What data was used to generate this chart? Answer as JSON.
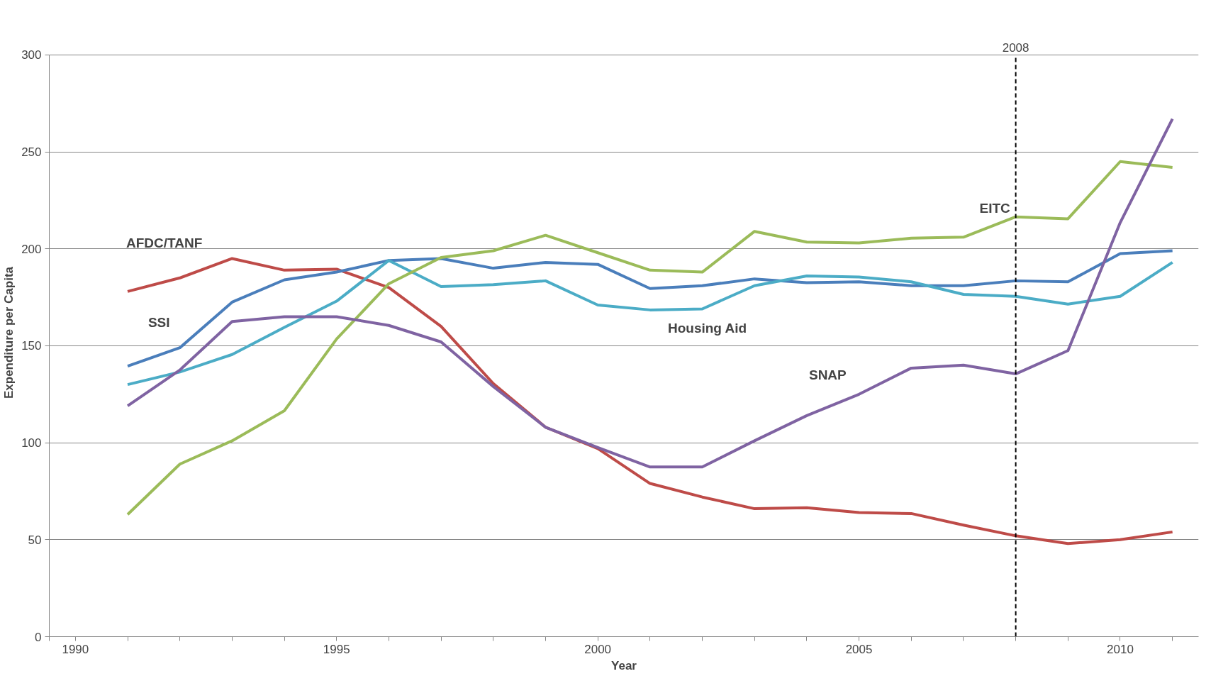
{
  "chart_data": {
    "type": "line",
    "xlabel": "Year",
    "ylabel": "Expenditure per Capita",
    "x": [
      1991,
      1992,
      1993,
      1994,
      1995,
      1996,
      1997,
      1998,
      1999,
      2000,
      2001,
      2002,
      2003,
      2004,
      2005,
      2006,
      2007,
      2008,
      2009,
      2010,
      2011
    ],
    "series": [
      {
        "name": "AFDC/TANF",
        "color": "#be4b48",
        "values": [
          178,
          185,
          195,
          189,
          189.5,
          180,
          160,
          130.5,
          108,
          97,
          79,
          72,
          66,
          66.5,
          64,
          63.5,
          57.5,
          52,
          48,
          50,
          54
        ]
      },
      {
        "name": "SSI",
        "color": "#4a7ebb",
        "values": [
          139.5,
          149,
          172.5,
          184,
          188,
          194,
          195,
          190,
          193,
          192,
          179.5,
          181,
          184.5,
          182.5,
          183,
          181,
          181,
          183.5,
          183,
          197.5,
          199
        ]
      },
      {
        "name": "Housing Aid",
        "color": "#4bacc6",
        "values": [
          130,
          136.5,
          145.5,
          159.5,
          173,
          194,
          180.5,
          181.5,
          183.5,
          171,
          168.5,
          169,
          181,
          186,
          185.5,
          183,
          176.5,
          175.5,
          171.5,
          175.5,
          193
        ]
      },
      {
        "name": "EITC",
        "color": "#9bbb59",
        "values": [
          63,
          89,
          101,
          116.5,
          153.5,
          182,
          195.5,
          199,
          207,
          198,
          189,
          188,
          209,
          203.5,
          203,
          205.5,
          206,
          216.5,
          215.5,
          245,
          242
        ]
      },
      {
        "name": "SNAP",
        "color": "#7f63a2",
        "values": [
          119,
          137.5,
          162.5,
          165,
          165,
          160.5,
          152,
          129,
          108,
          97.5,
          87.5,
          87.5,
          101,
          114,
          125,
          138.5,
          140,
          135.5,
          147.5,
          213.5,
          267
        ]
      }
    ],
    "xlim": [
      1989.5,
      2011.5
    ],
    "xticks": [
      {
        "value": 1989.5,
        "label": null
      },
      {
        "value": 1990,
        "label": "1990"
      },
      {
        "value": 1991,
        "label": null
      },
      {
        "value": 1992,
        "label": null
      },
      {
        "value": 1993,
        "label": null
      },
      {
        "value": 1994,
        "label": null
      },
      {
        "value": 1995,
        "label": "1995"
      },
      {
        "value": 1996,
        "label": null
      },
      {
        "value": 1997,
        "label": null
      },
      {
        "value": 1998,
        "label": null
      },
      {
        "value": 1999,
        "label": null
      },
      {
        "value": 2000,
        "label": "2000"
      },
      {
        "value": 2001,
        "label": null
      },
      {
        "value": 2002,
        "label": null
      },
      {
        "value": 2003,
        "label": null
      },
      {
        "value": 2004,
        "label": null
      },
      {
        "value": 2005,
        "label": "2005"
      },
      {
        "value": 2006,
        "label": null
      },
      {
        "value": 2007,
        "label": null
      },
      {
        "value": 2008,
        "label": null
      },
      {
        "value": 2009,
        "label": null
      },
      {
        "value": 2010,
        "label": "2010"
      },
      {
        "value": 2011,
        "label": null
      }
    ],
    "ylim": [
      0,
      300
    ],
    "yticks": [
      0,
      50,
      100,
      150,
      200,
      250,
      300
    ],
    "ref_lines": [
      {
        "axis": "x",
        "value": 2008,
        "label": "2008",
        "color": "#000000",
        "line_style": "dashed"
      }
    ],
    "grid": "y",
    "marker": "none",
    "line_style": "solid"
  }
}
